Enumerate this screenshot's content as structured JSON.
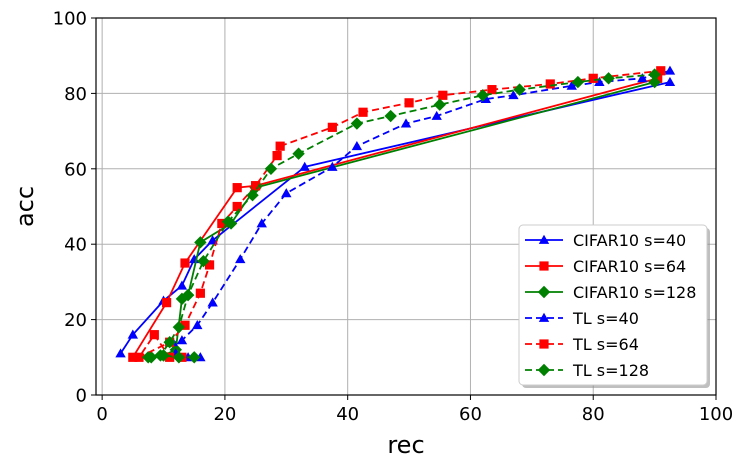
{
  "chart_data": {
    "type": "line",
    "xlabel": "rec",
    "ylabel": "acc",
    "xlim": [
      -1,
      100
    ],
    "ylim": [
      0,
      100
    ],
    "xticks": [
      "0",
      "20",
      "40",
      "60",
      "80",
      "100"
    ],
    "yticks": [
      "0",
      "20",
      "40",
      "60",
      "80",
      "100"
    ],
    "grid": true,
    "legend_position": "bottom-right",
    "series": [
      {
        "name": "CIFAR10 s=40",
        "color": "#0000ff",
        "line_style": "solid",
        "marker": "triangle",
        "x": [
          3,
          5,
          10,
          13,
          15,
          18,
          33,
          92.5
        ],
        "y": [
          11,
          16,
          25,
          29,
          36,
          41,
          60.5,
          83
        ]
      },
      {
        "name": "CIFAR10 s=64",
        "color": "#ff0000",
        "line_style": "solid",
        "marker": "square",
        "x": [
          5,
          10.5,
          13.5,
          22,
          25,
          90.5
        ],
        "y": [
          10,
          24.5,
          35,
          55,
          55.5,
          84
        ]
      },
      {
        "name": "CIFAR10 s=128",
        "color": "#008000",
        "line_style": "solid",
        "marker": "diamond",
        "x": [
          8,
          10,
          12,
          13,
          14,
          16,
          21,
          25,
          90
        ],
        "y": [
          10,
          10.5,
          12,
          25.5,
          26.5,
          40.5,
          45.5,
          55,
          83
        ]
      },
      {
        "name": "TL s=40",
        "color": "#0000ff",
        "line_style": "dashed",
        "marker": "triangle",
        "x": [
          16,
          14,
          12,
          11.5,
          13,
          15.5,
          18,
          22.5,
          26,
          30,
          37.5,
          41.5,
          49.5,
          54.5,
          62.5,
          67,
          76.5,
          81,
          88,
          92.5
        ],
        "y": [
          10,
          10,
          11,
          14,
          14.5,
          18.5,
          24.5,
          36,
          45.5,
          53.5,
          60.5,
          66,
          72,
          74,
          78.5,
          79.5,
          82,
          83,
          84,
          86
        ]
      },
      {
        "name": "TL s=64",
        "color": "#ff0000",
        "line_style": "dashed",
        "marker": "square",
        "x": [
          13,
          11,
          8.5,
          6,
          11,
          13.5,
          16,
          17.5,
          19.5,
          22,
          25,
          28.5,
          29,
          37.5,
          42.5,
          50,
          55.5,
          63.5,
          73,
          80,
          91
        ],
        "y": [
          10,
          10,
          16,
          10,
          14,
          18.5,
          27,
          34.5,
          45.5,
          50,
          55.5,
          63.5,
          66,
          71,
          75,
          77.5,
          79.5,
          81,
          82.5,
          84,
          86
        ]
      },
      {
        "name": "TL s=128",
        "color": "#008000",
        "line_style": "dashed",
        "marker": "diamond",
        "x": [
          15,
          12.5,
          10,
          7.5,
          9.5,
          11,
          12.5,
          14,
          16.5,
          20.5,
          24.5,
          27.5,
          32,
          41.5,
          47,
          55,
          62,
          68,
          77.5,
          82.5,
          90
        ],
        "y": [
          10,
          10,
          10.5,
          10,
          10.5,
          14,
          18,
          26.5,
          35.5,
          46,
          53,
          60,
          64,
          72,
          74,
          77,
          79.5,
          81,
          83,
          84,
          85
        ]
      }
    ]
  }
}
